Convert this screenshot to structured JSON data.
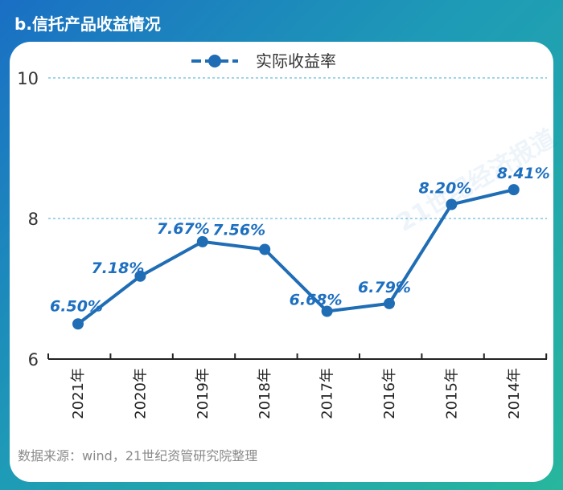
{
  "header": {
    "title": "b.信托产品收益情况"
  },
  "source": "数据来源：wind，21世纪资管研究院整理",
  "watermark": "21世纪经济报道",
  "colors": {
    "line": "#1f6db5",
    "label": "#1d6fc0",
    "grid": "#3fa9d6",
    "axis": "#222222"
  },
  "chart_data": {
    "type": "line",
    "categories": [
      "2021年",
      "2020年",
      "2019年",
      "2018年",
      "2017年",
      "2016年",
      "2015年",
      "2014年"
    ],
    "series": [
      {
        "name": "实际收益率",
        "values": [
          6.5,
          7.18,
          7.67,
          7.56,
          6.68,
          6.79,
          8.2,
          8.41
        ],
        "labels": [
          "6.50%",
          "7.18%",
          "7.67%",
          "7.56%",
          "6.68%",
          "6.79%",
          "8.20%",
          "8.41%"
        ]
      }
    ],
    "yticks": [
      "10",
      "8",
      "6"
    ],
    "ylim": [
      6,
      10
    ],
    "grid": "dashed horizontal at 8 and 10",
    "legend": "top-center"
  }
}
